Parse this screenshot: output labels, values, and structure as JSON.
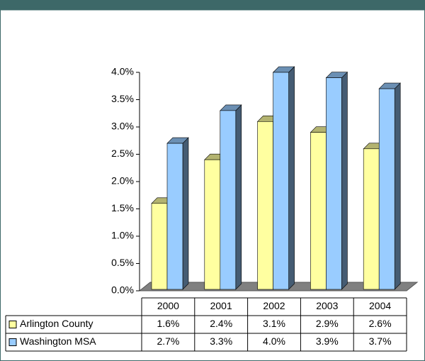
{
  "chart_data": {
    "type": "bar3d",
    "categories": [
      "2000",
      "2001",
      "2002",
      "2003",
      "2004"
    ],
    "series": [
      {
        "name": "Arlington County",
        "color": "#ffffa0",
        "values": [
          1.6,
          2.4,
          3.1,
          2.9,
          2.6
        ],
        "value_labels": [
          "1.6%",
          "2.4%",
          "3.1%",
          "2.9%",
          "2.6%"
        ]
      },
      {
        "name": "Washington MSA",
        "color": "#99ccff",
        "values": [
          2.7,
          3.3,
          4.0,
          3.9,
          3.7
        ],
        "value_labels": [
          "2.7%",
          "3.3%",
          "4.0%",
          "3.9%",
          "3.7%"
        ]
      }
    ],
    "ylim": [
      0,
      4
    ],
    "yticks": [
      {
        "value": 0,
        "label": "0.0%"
      },
      {
        "value": 0.5,
        "label": "0.5%"
      },
      {
        "value": 1,
        "label": "1.0%"
      },
      {
        "value": 1.5,
        "label": "1.5%"
      },
      {
        "value": 2,
        "label": "2.0%"
      },
      {
        "value": 2.5,
        "label": "2.5%"
      },
      {
        "value": 3,
        "label": "3.0%"
      },
      {
        "value": 3.5,
        "label": "3.5%"
      },
      {
        "value": 4,
        "label": "4.0%"
      }
    ]
  }
}
